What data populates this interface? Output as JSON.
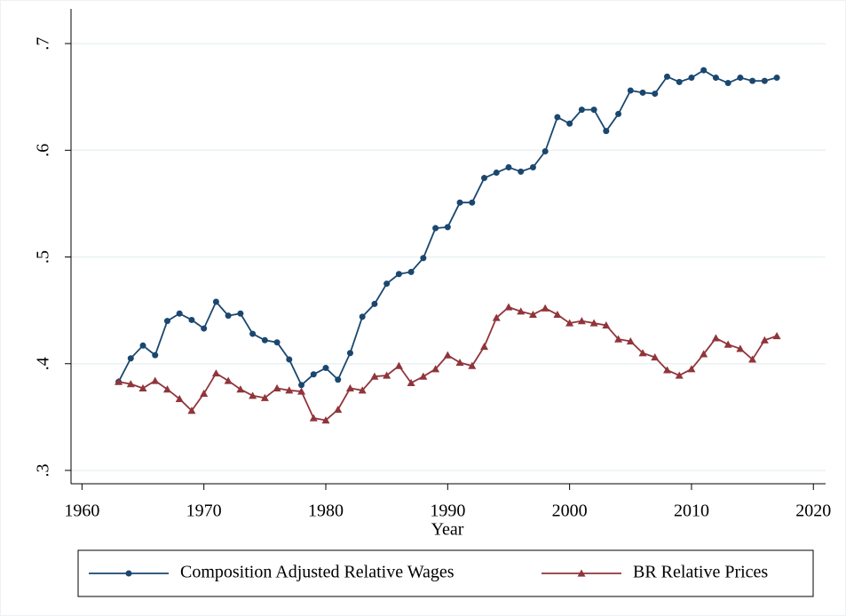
{
  "chart_data": {
    "type": "line",
    "x_label": "Year",
    "x": [
      1963,
      1964,
      1965,
      1966,
      1967,
      1968,
      1969,
      1970,
      1971,
      1972,
      1973,
      1974,
      1975,
      1976,
      1977,
      1978,
      1979,
      1980,
      1981,
      1982,
      1983,
      1984,
      1985,
      1986,
      1987,
      1988,
      1989,
      1990,
      1991,
      1992,
      1993,
      1994,
      1995,
      1996,
      1997,
      1998,
      1999,
      2000,
      2001,
      2002,
      2003,
      2004,
      2005,
      2006,
      2007,
      2008,
      2009,
      2010,
      2011,
      2012,
      2013,
      2014,
      2015,
      2016,
      2017
    ],
    "series": [
      {
        "name": "Composition Adjusted Relative Wages",
        "color": "#1a476f",
        "marker": "circle",
        "values": [
          0.383,
          0.405,
          0.417,
          0.408,
          0.44,
          0.447,
          0.441,
          0.433,
          0.458,
          0.445,
          0.447,
          0.428,
          0.422,
          0.42,
          0.404,
          0.38,
          0.39,
          0.396,
          0.385,
          0.41,
          0.444,
          0.456,
          0.475,
          0.484,
          0.486,
          0.499,
          0.527,
          0.528,
          0.551,
          0.551,
          0.574,
          0.579,
          0.584,
          0.58,
          0.584,
          0.599,
          0.631,
          0.625,
          0.638,
          0.638,
          0.618,
          0.634,
          0.656,
          0.654,
          0.653,
          0.669,
          0.664,
          0.668,
          0.675,
          0.668,
          0.663,
          0.668,
          0.665,
          0.665,
          0.668
        ]
      },
      {
        "name": "BR Relative Prices",
        "color": "#90353b",
        "marker": "triangle",
        "values": [
          0.383,
          0.381,
          0.377,
          0.384,
          0.376,
          0.367,
          0.356,
          0.372,
          0.391,
          0.384,
          0.376,
          0.37,
          0.368,
          0.377,
          0.375,
          0.374,
          0.349,
          0.347,
          0.357,
          0.377,
          0.375,
          0.388,
          0.389,
          0.398,
          0.382,
          0.388,
          0.395,
          0.408,
          0.401,
          0.398,
          0.416,
          0.443,
          0.453,
          0.449,
          0.446,
          0.452,
          0.446,
          0.438,
          0.44,
          0.438,
          0.436,
          0.423,
          0.421,
          0.41,
          0.406,
          0.394,
          0.389,
          0.395,
          0.409,
          0.424,
          0.418,
          0.414,
          0.404,
          0.422,
          0.426
        ]
      }
    ],
    "xlim": [
      1959.1,
      2021
    ],
    "xticks": [
      1960,
      1970,
      1980,
      1990,
      2000,
      2010,
      2020
    ],
    "ylim": [
      0.2875,
      0.7325
    ],
    "yticks": [
      {
        "value": 0.3,
        "label": ".3"
      },
      {
        "value": 0.4,
        "label": ".4"
      },
      {
        "value": 0.5,
        "label": ".5"
      },
      {
        "value": 0.6,
        "label": ".6"
      },
      {
        "value": 0.7,
        "label": ".7"
      }
    ],
    "grid": true,
    "legend": "bottom"
  }
}
